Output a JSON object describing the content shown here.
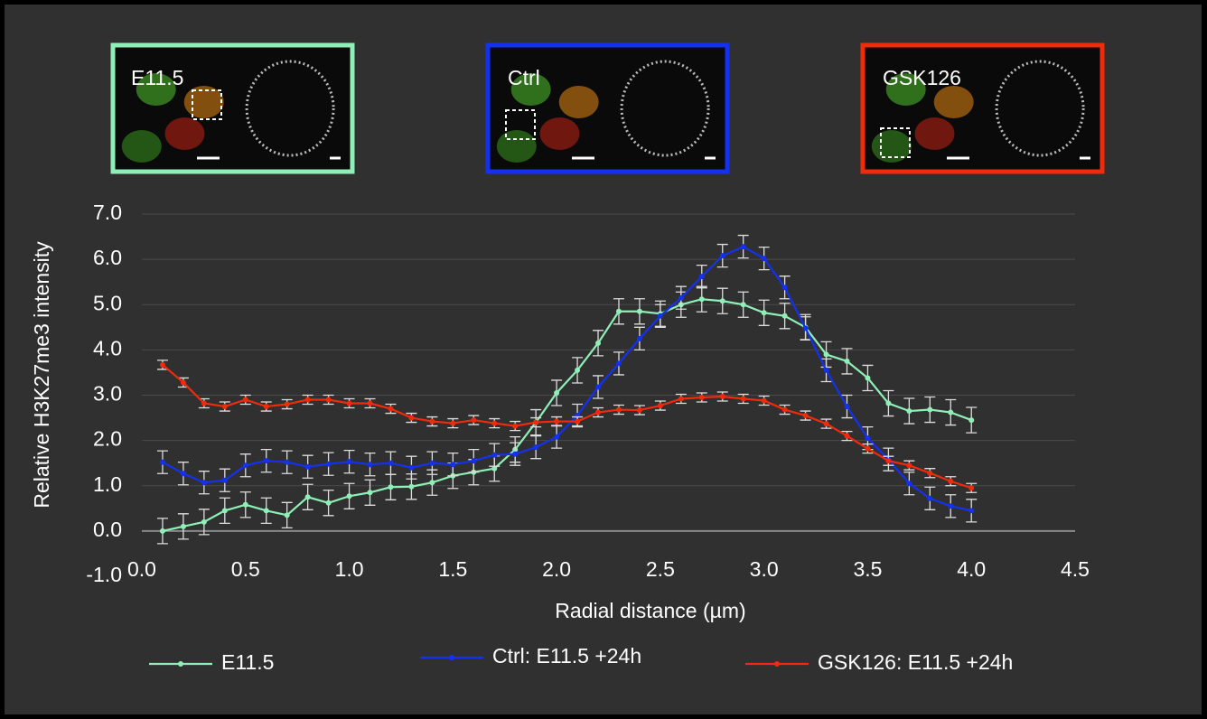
{
  "chart_data": {
    "type": "line",
    "x_label": "Radial distance (µm)",
    "y_label": "Relative H3K27me3 intensity",
    "panels": [
      {
        "label": "E11.5",
        "color": "#8ef0b6"
      },
      {
        "label": "Ctrl",
        "color": "#1430f0"
      },
      {
        "label": "GSK126",
        "color": "#f02a0a"
      }
    ],
    "x": [
      0.1,
      0.2,
      0.3,
      0.4,
      0.5,
      0.6,
      0.7,
      0.8,
      0.9,
      1.0,
      1.1,
      1.2,
      1.3,
      1.4,
      1.5,
      1.6,
      1.7,
      1.8,
      1.9,
      2.0,
      2.1,
      2.2,
      2.3,
      2.4,
      2.5,
      2.6,
      2.7,
      2.8,
      2.9,
      3.0,
      3.1,
      3.2,
      3.3,
      3.4,
      3.5,
      3.6,
      3.7,
      3.8,
      3.9,
      4.0
    ],
    "series": [
      {
        "name": "E11.5",
        "color": "#8ef0b6",
        "values": [
          0.0,
          0.1,
          0.2,
          0.45,
          0.58,
          0.45,
          0.35,
          0.75,
          0.62,
          0.77,
          0.85,
          0.97,
          0.98,
          1.07,
          1.22,
          1.3,
          1.38,
          1.8,
          2.4,
          3.05,
          3.55,
          4.15,
          4.85,
          4.85,
          4.8,
          5.0,
          5.12,
          5.08,
          5.0,
          4.82,
          4.75,
          4.5,
          3.9,
          3.75,
          3.38,
          2.82,
          2.65,
          2.68,
          2.62,
          2.45
        ],
        "errors": [
          0.28,
          0.28,
          0.28,
          0.28,
          0.28,
          0.28,
          0.28,
          0.28,
          0.28,
          0.28,
          0.28,
          0.28,
          0.28,
          0.28,
          0.28,
          0.28,
          0.28,
          0.28,
          0.28,
          0.28,
          0.28,
          0.28,
          0.28,
          0.28,
          0.28,
          0.28,
          0.28,
          0.28,
          0.28,
          0.28,
          0.28,
          0.28,
          0.28,
          0.28,
          0.28,
          0.28,
          0.28,
          0.28,
          0.28,
          0.28
        ]
      },
      {
        "name": "Ctrl: E11.5 +24h",
        "color": "#1430f0",
        "values": [
          1.52,
          1.27,
          1.07,
          1.12,
          1.45,
          1.55,
          1.52,
          1.42,
          1.48,
          1.53,
          1.47,
          1.5,
          1.4,
          1.5,
          1.47,
          1.55,
          1.68,
          1.7,
          1.85,
          2.08,
          2.55,
          3.18,
          3.7,
          4.25,
          4.75,
          5.15,
          5.62,
          6.08,
          6.28,
          6.02,
          5.38,
          4.48,
          3.55,
          2.75,
          2.05,
          1.58,
          1.05,
          0.72,
          0.55,
          0.45
        ],
        "errors": [
          0.25,
          0.25,
          0.25,
          0.25,
          0.25,
          0.25,
          0.25,
          0.25,
          0.25,
          0.25,
          0.25,
          0.25,
          0.25,
          0.25,
          0.25,
          0.25,
          0.25,
          0.25,
          0.25,
          0.25,
          0.25,
          0.25,
          0.25,
          0.25,
          0.25,
          0.25,
          0.25,
          0.25,
          0.25,
          0.25,
          0.25,
          0.25,
          0.25,
          0.25,
          0.25,
          0.25,
          0.25,
          0.25,
          0.25,
          0.25
        ]
      },
      {
        "name": "GSK126: E11.5 +24h",
        "color": "#f02a0a",
        "values": [
          3.67,
          3.28,
          2.82,
          2.75,
          2.9,
          2.75,
          2.8,
          2.9,
          2.9,
          2.82,
          2.82,
          2.7,
          2.5,
          2.42,
          2.38,
          2.45,
          2.38,
          2.32,
          2.4,
          2.42,
          2.42,
          2.62,
          2.68,
          2.67,
          2.77,
          2.92,
          2.95,
          2.97,
          2.92,
          2.88,
          2.68,
          2.55,
          2.37,
          2.1,
          1.82,
          1.55,
          1.45,
          1.28,
          1.1,
          0.95
        ],
        "errors": [
          0.1,
          0.1,
          0.1,
          0.1,
          0.1,
          0.1,
          0.1,
          0.1,
          0.1,
          0.1,
          0.1,
          0.1,
          0.1,
          0.1,
          0.1,
          0.1,
          0.1,
          0.1,
          0.1,
          0.1,
          0.1,
          0.1,
          0.1,
          0.1,
          0.1,
          0.1,
          0.1,
          0.1,
          0.1,
          0.1,
          0.1,
          0.1,
          0.1,
          0.1,
          0.1,
          0.1,
          0.1,
          0.1,
          0.1,
          0.1
        ]
      }
    ],
    "xlim": [
      0,
      4.5
    ],
    "xticks": [
      {
        "value": 0,
        "label": "0.0"
      },
      {
        "value": 0.5,
        "label": "0.5"
      },
      {
        "value": 1,
        "label": "1.0"
      },
      {
        "value": 1.5,
        "label": "1.5"
      },
      {
        "value": 2,
        "label": "2.0"
      },
      {
        "value": 2.5,
        "label": "2.5"
      },
      {
        "value": 3,
        "label": "3.0"
      },
      {
        "value": 3.5,
        "label": "3.5"
      },
      {
        "value": 4,
        "label": "4.0"
      },
      {
        "value": 4.5,
        "label": "4.5"
      }
    ],
    "ylim": [
      -1,
      7
    ],
    "yticks": [
      {
        "value": -1,
        "label": "-1.0"
      },
      {
        "value": 0,
        "label": "0.0"
      },
      {
        "value": 1,
        "label": "1.0"
      },
      {
        "value": 2,
        "label": "2.0"
      },
      {
        "value": 3,
        "label": "3.0"
      },
      {
        "value": 4,
        "label": "4.0"
      },
      {
        "value": 5,
        "label": "5.0"
      },
      {
        "value": 6,
        "label": "6.0"
      },
      {
        "value": 7,
        "label": "7.0"
      }
    ],
    "grid": true,
    "legend": "bottom"
  }
}
